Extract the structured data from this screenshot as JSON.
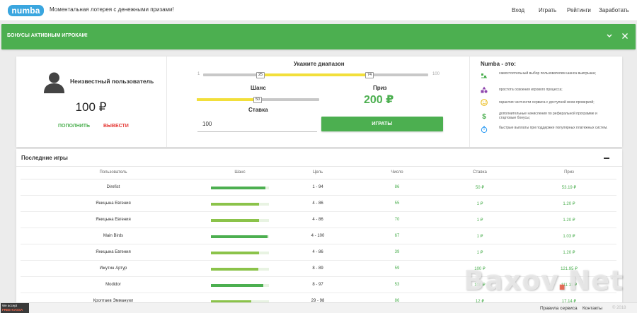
{
  "header": {
    "logo_text": "numba",
    "tagline": "Моментальная лотерея с денежными призами!",
    "nav": [
      "Вход",
      "Играть",
      "Рейтинги",
      "Заработать"
    ]
  },
  "banner": {
    "title": "БОНУСЫ АКТИВНЫМ ИГРОКАМ!",
    "color": "#4caf50"
  },
  "user_panel": {
    "name": "Неизвестный пользователь",
    "balance": "100 ₽",
    "deposit_label": "ПОПОЛНИТЬ",
    "withdraw_label": "ВЫВЕСТИ"
  },
  "game_panel": {
    "range_title": "Укажите диапазон",
    "range_min": "1",
    "range_max": "100",
    "range_low": "25",
    "range_high": "74",
    "chance_label": "Шанс",
    "chance_value": "50",
    "prize_label": "Приз",
    "prize_value": "200 ₽",
    "stake_label": "Ставка",
    "stake_value": "100",
    "play_label": "ИГРАТЬ!"
  },
  "about": {
    "title": "Numba - это:",
    "features": [
      {
        "icon": "sliders-icon",
        "text": "самостоятельный выбор пользователем шанса выигрыша;"
      },
      {
        "icon": "shapes-icon",
        "text": "простота освоения игрового процесса;"
      },
      {
        "icon": "smile-icon",
        "text": "гарантия честности сервиса с доступной всем проверкой;"
      },
      {
        "icon": "dollar-icon",
        "text": "дополнительные начисления по реферальной программе и стартовые бонусы;"
      },
      {
        "icon": "stopwatch-icon",
        "text": "быстрые выплаты при поддержке популярных платежных систем."
      }
    ]
  },
  "recent_games": {
    "title": "Последние игры",
    "columns": [
      "Пользователь",
      "Шанс",
      "Цель",
      "Число",
      "Ставка",
      "Приз"
    ],
    "rows": [
      {
        "user": "Direfist",
        "chance": 0.94,
        "target": "1 - 94",
        "number": "86",
        "stake": "50 ₽",
        "prize": "53.19 ₽"
      },
      {
        "user": "Яницына Евгения",
        "chance": 0.83,
        "target": "4 - 86",
        "number": "55",
        "stake": "1 ₽",
        "prize": "1.20 ₽"
      },
      {
        "user": "Яницына Евгения",
        "chance": 0.83,
        "target": "4 - 86",
        "number": "70",
        "stake": "1 ₽",
        "prize": "1.20 ₽"
      },
      {
        "user": "Main Birds",
        "chance": 0.97,
        "target": "4 - 100",
        "number": "67",
        "stake": "1 ₽",
        "prize": "1.03 ₽"
      },
      {
        "user": "Яницына Евгения",
        "chance": 0.83,
        "target": "4 - 86",
        "number": "39",
        "stake": "1 ₽",
        "prize": "1.20 ₽"
      },
      {
        "user": "Ижутин Артур",
        "chance": 0.82,
        "target": "8 - 89",
        "number": "59",
        "stake": "100 ₽",
        "prize": "121.95 ₽"
      },
      {
        "user": "Modidor",
        "chance": 0.9,
        "target": "8 - 97",
        "number": "53",
        "stake": "100 ₽",
        "prize": "111.11 ₽"
      },
      {
        "user": "Кроптаев Эммануил",
        "chance": 0.7,
        "target": "29 - 98",
        "number": "86",
        "stake": "12 ₽",
        "prize": "17.14 ₽"
      }
    ]
  },
  "footer": {
    "accept_text": "We accept",
    "accept_brand": "FREE-KASSA",
    "rules_link": "Правила сервиса",
    "contacts_link": "Контакты",
    "copyright": "© 2018"
  },
  "watermark": {
    "text_a": "Baxov",
    "dot": ".",
    "text_b": "Net"
  },
  "colors": {
    "accent": "#4caf50",
    "light_accent": "#8bc34a",
    "slider_fill": "#f2df3b",
    "danger": "#e53935",
    "logo": "#3aa6df"
  }
}
